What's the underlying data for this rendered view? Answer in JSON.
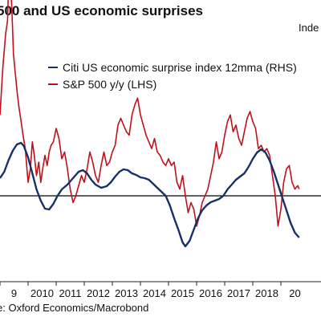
{
  "title": "500 and US economic surprises",
  "unit_label": "Inde",
  "source": "e: Oxford Economics/Macrobond",
  "colors": {
    "sp500": "#c0111a",
    "citi": "#16306b",
    "zero_line": "#000000"
  },
  "chart_data": {
    "type": "line",
    "title": "500 and US economic surprises",
    "xlabel": "",
    "ylabel": "",
    "x_tick_labels": [
      "9",
      "2010",
      "2011",
      "2012",
      "2013",
      "2014",
      "2015",
      "2016",
      "2017",
      "2018",
      "20"
    ],
    "xlim": [
      2009.0,
      2019.65
    ],
    "grid": false,
    "legend_position": "top-left",
    "series": [
      {
        "name": "Citi US economic surprise index 12mma (RHS)",
        "x": [
          2009.0,
          2009.15,
          2009.3,
          2009.45,
          2009.6,
          2009.75,
          2009.85,
          2010.0,
          2010.15,
          2010.3,
          2010.45,
          2010.6,
          2010.75,
          2010.9,
          2011.05,
          2011.2,
          2011.4,
          2011.6,
          2011.8,
          2011.95,
          2012.1,
          2012.25,
          2012.4,
          2012.6,
          2012.8,
          2012.95,
          2013.1,
          2013.25,
          2013.4,
          2013.55,
          2013.7,
          2013.85,
          2014.0,
          2014.15,
          2014.3,
          2014.45,
          2014.6,
          2014.75,
          2014.9,
          2015.05,
          2015.2,
          2015.35,
          2015.5,
          2015.6,
          2015.75,
          2015.9,
          2016.05,
          2016.2,
          2016.35,
          2016.5,
          2016.65,
          2016.8,
          2016.95,
          2017.1,
          2017.25,
          2017.4,
          2017.55,
          2017.7,
          2017.85,
          2018.0,
          2018.15,
          2018.3,
          2018.45,
          2018.6,
          2018.75,
          2018.9,
          2019.05,
          2019.2,
          2019.35,
          2019.5,
          2019.65
        ],
        "values": [
          22,
          30,
          44,
          56,
          64,
          66,
          62,
          48,
          28,
          8,
          -6,
          -16,
          -17,
          -10,
          0,
          8,
          14,
          22,
          30,
          32,
          28,
          20,
          14,
          10,
          12,
          17,
          24,
          30,
          33,
          32,
          28,
          26,
          23,
          22,
          20,
          15,
          10,
          5,
          0,
          -12,
          -28,
          -42,
          -58,
          -63,
          -56,
          -42,
          -28,
          -18,
          -12,
          -8,
          -6,
          -4,
          0,
          8,
          14,
          20,
          24,
          28,
          36,
          46,
          54,
          58,
          54,
          44,
          30,
          14,
          -2,
          -18,
          -34,
          -46,
          -52
        ]
      },
      {
        "name": "S&P 500 y/y (LHS)",
        "x": [
          2009.0,
          2009.1,
          2009.2,
          2009.27,
          2009.33,
          2009.38,
          2009.42,
          2009.48,
          2009.55,
          2009.62,
          2009.68,
          2009.75,
          2009.82,
          2009.9,
          2010.0,
          2010.08,
          2010.15,
          2010.22,
          2010.3,
          2010.38,
          2010.45,
          2010.52,
          2010.6,
          2010.68,
          2010.75,
          2010.82,
          2010.9,
          2011.0,
          2011.1,
          2011.2,
          2011.3,
          2011.4,
          2011.5,
          2011.6,
          2011.7,
          2011.8,
          2011.9,
          2012.0,
          2012.1,
          2012.2,
          2012.3,
          2012.4,
          2012.5,
          2012.6,
          2012.7,
          2012.8,
          2012.9,
          2013.0,
          2013.1,
          2013.2,
          2013.3,
          2013.4,
          2013.5,
          2013.6,
          2013.7,
          2013.8,
          2013.9,
          2014.0,
          2014.1,
          2014.2,
          2014.3,
          2014.4,
          2014.5,
          2014.6,
          2014.7,
          2014.8,
          2014.9,
          2015.0,
          2015.1,
          2015.2,
          2015.3,
          2015.4,
          2015.5,
          2015.6,
          2015.7,
          2015.8,
          2015.9,
          2016.0,
          2016.1,
          2016.2,
          2016.3,
          2016.4,
          2016.5,
          2016.6,
          2016.7,
          2016.8,
          2016.9,
          2017.0,
          2017.1,
          2017.2,
          2017.3,
          2017.4,
          2017.5,
          2017.6,
          2017.7,
          2017.8,
          2017.9,
          2018.0,
          2018.1,
          2018.2,
          2018.3,
          2018.4,
          2018.5,
          2018.6,
          2018.7,
          2018.8,
          2018.9,
          2019.0,
          2019.1,
          2019.2,
          2019.3,
          2019.4,
          2019.5,
          2019.6,
          2019.65
        ],
        "values": [
          24,
          38,
          48,
          52,
          70,
          62,
          56,
          42,
          36,
          30,
          26,
          22,
          18,
          14,
          4,
          8,
          16,
          12,
          6,
          10,
          4,
          8,
          12,
          9,
          13,
          15,
          16,
          20,
          17,
          11,
          13,
          8,
          2,
          -2,
          0,
          3,
          6,
          4,
          8,
          13,
          10,
          6,
          4,
          9,
          13,
          9,
          10,
          13,
          15,
          21,
          23,
          21,
          19,
          18,
          24,
          27,
          29,
          24,
          21,
          18,
          16,
          14,
          17,
          13,
          12,
          10,
          9,
          11,
          9,
          10,
          4,
          2,
          6,
          0,
          -5,
          -2,
          -4,
          -9,
          -6,
          -2,
          0,
          2,
          6,
          10,
          16,
          11,
          13,
          18,
          22,
          24,
          19,
          21,
          17,
          15,
          19,
          23,
          25,
          22,
          20,
          14,
          15,
          13,
          14,
          12,
          6,
          0,
          -9,
          -4,
          4,
          8,
          9,
          4,
          2,
          3,
          2
        ]
      }
    ]
  }
}
